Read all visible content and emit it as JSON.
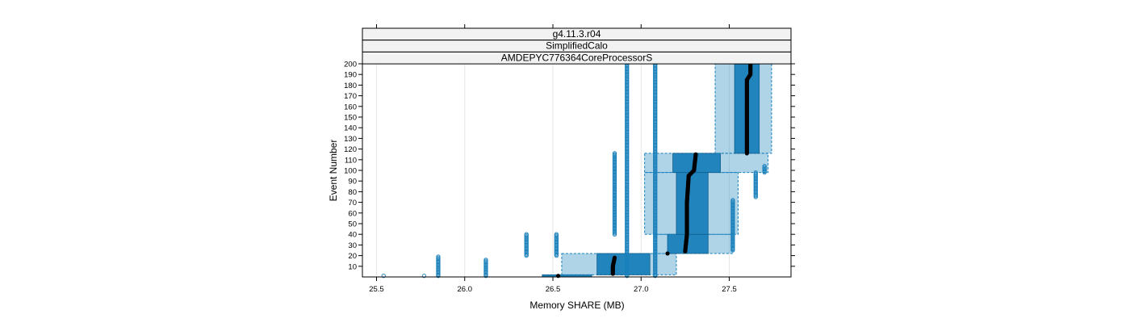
{
  "chart_data": {
    "type": "box-scatter",
    "title": "",
    "xlabel": "Memory SHARE (MB)",
    "ylabel": "Event Number",
    "xlim": [
      25.42,
      27.85
    ],
    "ylim": [
      0,
      200
    ],
    "x_ticks": [
      25.5,
      26.0,
      26.5,
      27.0,
      27.5
    ],
    "x_tick_labels": [
      "25.5",
      "26.0",
      "26.5",
      "27.0",
      "27.5"
    ],
    "y_ticks": [
      10,
      20,
      30,
      40,
      50,
      60,
      70,
      80,
      90,
      100,
      110,
      120,
      130,
      140,
      150,
      160,
      170,
      180,
      190,
      200
    ],
    "y_tick_labels": [
      "10",
      "20",
      "30",
      "40",
      "50",
      "60",
      "70",
      "80",
      "90",
      "100",
      "110",
      "120",
      "130",
      "140",
      "150",
      "160",
      "170",
      "180",
      "190",
      "200"
    ],
    "strips": [
      "g4.11.3.r04",
      "SimplifiedCalo",
      "AMDEPYC776364CoreProcessorS"
    ],
    "grid": true,
    "colors": {
      "box": "#1a80bb",
      "median": "#000000",
      "strip_bg": "#f2f2f2",
      "grid": "#e6e6e6"
    },
    "box_bands": [
      {
        "y": [
          0,
          2
        ],
        "q": [
          26.44,
          26.72
        ],
        "whisker": [
          26.44,
          26.72
        ]
      },
      {
        "y": [
          2,
          22
        ],
        "q": [
          26.75,
          27.05
        ],
        "whisker": [
          26.55,
          27.2
        ]
      },
      {
        "y": [
          22,
          40
        ],
        "q": [
          27.15,
          27.38
        ],
        "whisker": [
          27.08,
          27.52
        ]
      },
      {
        "y": [
          40,
          98
        ],
        "q": [
          27.2,
          27.38
        ],
        "whisker": [
          27.02,
          27.55
        ]
      },
      {
        "y": [
          98,
          116
        ],
        "q": [
          27.18,
          27.45
        ],
        "whisker": [
          27.02,
          27.72
        ]
      },
      {
        "y": [
          116,
          200
        ],
        "q": [
          27.53,
          27.67
        ],
        "whisker": [
          27.42,
          27.74
        ]
      }
    ],
    "median_points": [
      {
        "x": 26.53,
        "y": 1
      },
      {
        "x": 26.84,
        "y": 3
      },
      {
        "x": 26.84,
        "y": 10
      },
      {
        "x": 26.85,
        "y": 18
      },
      {
        "x": 27.15,
        "y": 22
      },
      {
        "x": 27.25,
        "y": 24
      },
      {
        "x": 27.26,
        "y": 40
      },
      {
        "x": 27.26,
        "y": 70
      },
      {
        "x": 27.27,
        "y": 95
      },
      {
        "x": 27.3,
        "y": 100
      },
      {
        "x": 27.31,
        "y": 115
      },
      {
        "x": 27.6,
        "y": 116
      },
      {
        "x": 27.6,
        "y": 185
      },
      {
        "x": 27.62,
        "y": 190
      },
      {
        "x": 27.62,
        "y": 200
      }
    ],
    "outlier_columns": [
      {
        "x": 25.54,
        "y": [
          1,
          1
        ]
      },
      {
        "x": 25.77,
        "y": [
          1,
          1
        ]
      },
      {
        "x": 25.85,
        "y": [
          1,
          19
        ]
      },
      {
        "x": 26.12,
        "y": [
          1,
          16
        ]
      },
      {
        "x": 26.35,
        "y": [
          20,
          40
        ]
      },
      {
        "x": 26.52,
        "y": [
          20,
          40
        ]
      },
      {
        "x": 26.85,
        "y": [
          40,
          116
        ]
      },
      {
        "x": 26.92,
        "y": [
          1,
          200
        ]
      },
      {
        "x": 27.08,
        "y": [
          1,
          200
        ]
      },
      {
        "x": 27.52,
        "y": [
          25,
          72
        ]
      },
      {
        "x": 27.65,
        "y": [
          75,
          98
        ]
      },
      {
        "x": 27.7,
        "y": [
          98,
          104
        ]
      }
    ]
  }
}
